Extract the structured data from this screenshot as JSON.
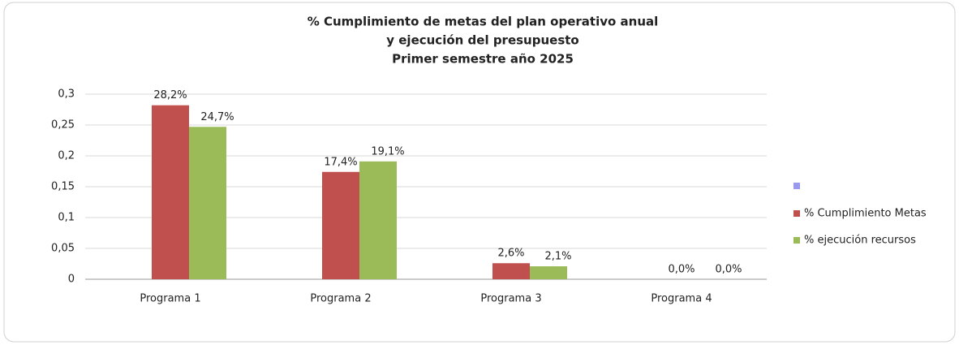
{
  "chart_data": {
    "type": "bar",
    "title": [
      "% Cumplimiento de metas del plan operativo anual",
      "y ejecución del presupuesto",
      "Primer semestre año 2025"
    ],
    "categories": [
      "Programa 1",
      "Programa 2",
      "Programa 3",
      "Programa 4"
    ],
    "series": [
      {
        "name": "% Cumplimiento Metas",
        "color": "#c0504d",
        "values": [
          0.282,
          0.174,
          0.026,
          0
        ],
        "value_labels": [
          "28,2%",
          "17,4%",
          "2,6%",
          "0,0%"
        ]
      },
      {
        "name": "% ejecución recursos",
        "color": "#9bbb59",
        "values": [
          0.247,
          0.191,
          0.021,
          0
        ],
        "value_labels": [
          "24,7%",
          "19,1%",
          "2,1%",
          "0,0%"
        ]
      }
    ],
    "ylim": [
      0,
      0.3
    ],
    "yticks": [
      0,
      {
        "value": 0.05,
        "label": "0,05"
      },
      {
        "value": 0.1,
        "label": "0,1"
      },
      {
        "value": 0.15,
        "label": "0,15"
      },
      {
        "value": 0.2,
        "label": "0,2"
      },
      {
        "value": 0.25,
        "label": "0,25"
      },
      {
        "value": 0.3,
        "label": "0,3"
      }
    ],
    "grid": true
  }
}
